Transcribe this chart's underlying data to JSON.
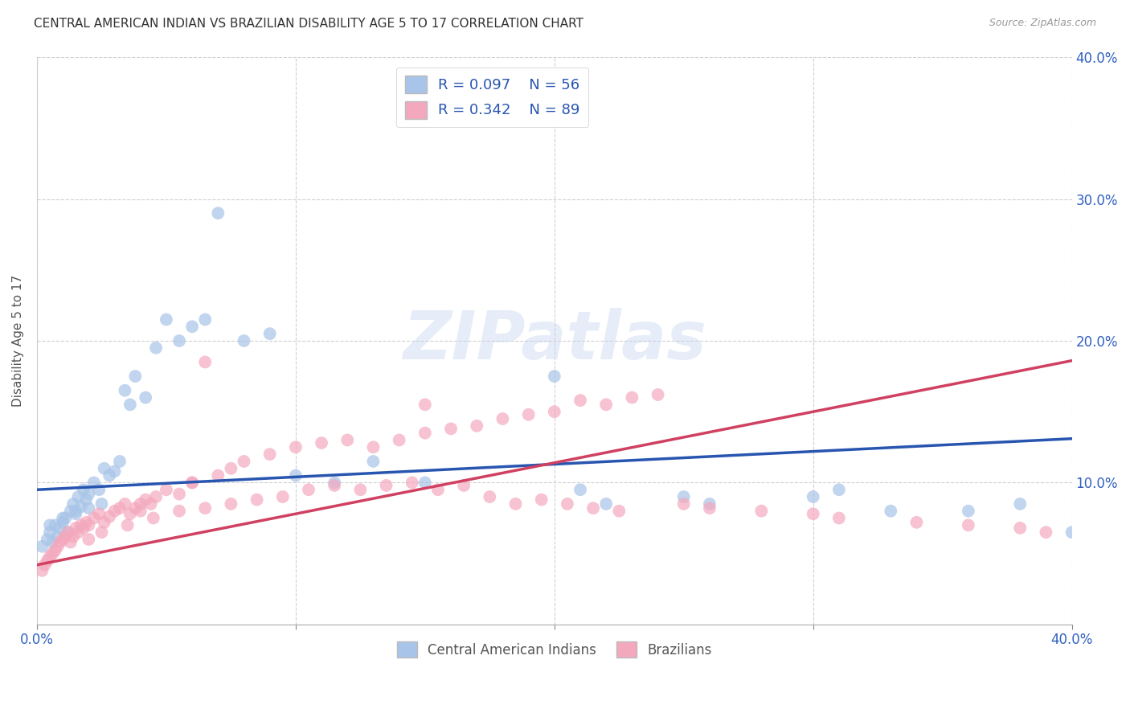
{
  "title": "CENTRAL AMERICAN INDIAN VS BRAZILIAN DISABILITY AGE 5 TO 17 CORRELATION CHART",
  "source": "Source: ZipAtlas.com",
  "ylabel": "Disability Age 5 to 17",
  "xmin": 0.0,
  "xmax": 0.4,
  "ymin": 0.0,
  "ymax": 0.4,
  "ytick_positions": [
    0.1,
    0.2,
    0.3,
    0.4
  ],
  "ytick_labels": [
    "10.0%",
    "20.0%",
    "30.0%",
    "40.0%"
  ],
  "blue_R": 0.097,
  "blue_N": 56,
  "pink_R": 0.342,
  "pink_N": 89,
  "blue_color": "#a8c4e8",
  "pink_color": "#f4a8be",
  "blue_line_color": "#2855b0",
  "pink_line_color": "#d04060",
  "legend_label_blue": "Central American Indians",
  "legend_label_pink": "Brazilians",
  "blue_scatter_x": [
    0.002,
    0.004,
    0.005,
    0.006,
    0.007,
    0.008,
    0.009,
    0.01,
    0.011,
    0.012,
    0.013,
    0.014,
    0.015,
    0.016,
    0.017,
    0.018,
    0.019,
    0.02,
    0.022,
    0.024,
    0.026,
    0.028,
    0.03,
    0.032,
    0.034,
    0.036,
    0.038,
    0.042,
    0.046,
    0.05,
    0.055,
    0.06,
    0.065,
    0.07,
    0.08,
    0.09,
    0.1,
    0.115,
    0.13,
    0.15,
    0.2,
    0.21,
    0.22,
    0.25,
    0.26,
    0.3,
    0.31,
    0.33,
    0.36,
    0.38,
    0.005,
    0.01,
    0.015,
    0.02,
    0.025,
    0.4
  ],
  "blue_scatter_y": [
    0.055,
    0.06,
    0.065,
    0.058,
    0.07,
    0.062,
    0.068,
    0.072,
    0.075,
    0.065,
    0.08,
    0.085,
    0.078,
    0.09,
    0.083,
    0.095,
    0.088,
    0.092,
    0.1,
    0.095,
    0.11,
    0.105,
    0.108,
    0.115,
    0.165,
    0.155,
    0.175,
    0.16,
    0.195,
    0.215,
    0.2,
    0.21,
    0.215,
    0.29,
    0.2,
    0.205,
    0.105,
    0.1,
    0.115,
    0.1,
    0.175,
    0.095,
    0.085,
    0.09,
    0.085,
    0.09,
    0.095,
    0.08,
    0.08,
    0.085,
    0.07,
    0.075,
    0.08,
    0.082,
    0.085,
    0.065
  ],
  "pink_scatter_x": [
    0.002,
    0.003,
    0.004,
    0.005,
    0.006,
    0.007,
    0.008,
    0.009,
    0.01,
    0.011,
    0.012,
    0.013,
    0.014,
    0.015,
    0.016,
    0.017,
    0.018,
    0.019,
    0.02,
    0.022,
    0.024,
    0.026,
    0.028,
    0.03,
    0.032,
    0.034,
    0.036,
    0.038,
    0.04,
    0.042,
    0.044,
    0.046,
    0.05,
    0.055,
    0.06,
    0.065,
    0.07,
    0.075,
    0.08,
    0.09,
    0.1,
    0.11,
    0.12,
    0.13,
    0.14,
    0.15,
    0.16,
    0.17,
    0.18,
    0.19,
    0.2,
    0.21,
    0.22,
    0.23,
    0.24,
    0.025,
    0.035,
    0.045,
    0.055,
    0.065,
    0.075,
    0.085,
    0.095,
    0.105,
    0.115,
    0.125,
    0.135,
    0.145,
    0.155,
    0.165,
    0.175,
    0.185,
    0.195,
    0.205,
    0.215,
    0.225,
    0.25,
    0.26,
    0.28,
    0.3,
    0.31,
    0.34,
    0.36,
    0.38,
    0.39,
    0.15,
    0.02,
    0.04,
    0.06
  ],
  "pink_scatter_y": [
    0.038,
    0.042,
    0.045,
    0.048,
    0.05,
    0.052,
    0.055,
    0.058,
    0.06,
    0.062,
    0.065,
    0.058,
    0.062,
    0.068,
    0.065,
    0.07,
    0.068,
    0.072,
    0.07,
    0.075,
    0.078,
    0.072,
    0.076,
    0.08,
    0.082,
    0.085,
    0.078,
    0.082,
    0.085,
    0.088,
    0.085,
    0.09,
    0.095,
    0.092,
    0.1,
    0.185,
    0.105,
    0.11,
    0.115,
    0.12,
    0.125,
    0.128,
    0.13,
    0.125,
    0.13,
    0.135,
    0.138,
    0.14,
    0.145,
    0.148,
    0.15,
    0.158,
    0.155,
    0.16,
    0.162,
    0.065,
    0.07,
    0.075,
    0.08,
    0.082,
    0.085,
    0.088,
    0.09,
    0.095,
    0.098,
    0.095,
    0.098,
    0.1,
    0.095,
    0.098,
    0.09,
    0.085,
    0.088,
    0.085,
    0.082,
    0.08,
    0.085,
    0.082,
    0.08,
    0.078,
    0.075,
    0.072,
    0.07,
    0.068,
    0.065,
    0.155,
    0.06,
    0.08,
    0.1
  ],
  "watermark_text": "ZIPatlas",
  "bg_color": "#ffffff",
  "grid_color": "#d0d0d0"
}
